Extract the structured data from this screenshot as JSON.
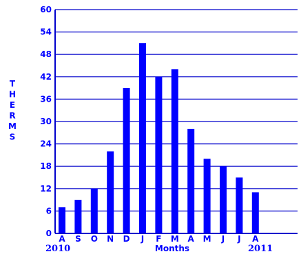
{
  "chart_data": {
    "type": "bar",
    "categories": [
      "A",
      "S",
      "O",
      "N",
      "D",
      "J",
      "F",
      "M",
      "A",
      "M",
      "J",
      "J",
      "A"
    ],
    "values": [
      7,
      9,
      12,
      22,
      39,
      51,
      42,
      44,
      28,
      20,
      18,
      15,
      11
    ],
    "ylabel": "THERMS",
    "xlabel": "Months",
    "ylim": [
      0,
      60
    ],
    "yticks": [
      "0",
      "6",
      "12",
      "18",
      "24",
      "30",
      "36",
      "42",
      "48",
      "54",
      "60"
    ],
    "year_labels": {
      "start": "2010",
      "end": "2011"
    },
    "grid": true,
    "colors": {
      "bars": "#0000ff",
      "grid": "#0000cc",
      "text": "#0000ff",
      "background": "#ffffff"
    }
  }
}
